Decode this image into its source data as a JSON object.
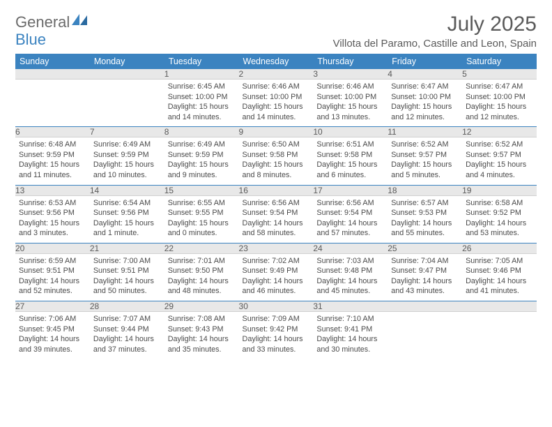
{
  "brand": {
    "word1": "General",
    "word2": "Blue"
  },
  "title": "July 2025",
  "location": "Villota del Paramo, Castille and Leon, Spain",
  "headerColor": "#3b83c0",
  "dayNames": [
    "Sunday",
    "Monday",
    "Tuesday",
    "Wednesday",
    "Thursday",
    "Friday",
    "Saturday"
  ],
  "weeks": [
    [
      null,
      null,
      {
        "n": "1",
        "sr": "6:45 AM",
        "ss": "10:00 PM",
        "dl": "15 hours and 14 minutes."
      },
      {
        "n": "2",
        "sr": "6:46 AM",
        "ss": "10:00 PM",
        "dl": "15 hours and 14 minutes."
      },
      {
        "n": "3",
        "sr": "6:46 AM",
        "ss": "10:00 PM",
        "dl": "15 hours and 13 minutes."
      },
      {
        "n": "4",
        "sr": "6:47 AM",
        "ss": "10:00 PM",
        "dl": "15 hours and 12 minutes."
      },
      {
        "n": "5",
        "sr": "6:47 AM",
        "ss": "10:00 PM",
        "dl": "15 hours and 12 minutes."
      }
    ],
    [
      {
        "n": "6",
        "sr": "6:48 AM",
        "ss": "9:59 PM",
        "dl": "15 hours and 11 minutes."
      },
      {
        "n": "7",
        "sr": "6:49 AM",
        "ss": "9:59 PM",
        "dl": "15 hours and 10 minutes."
      },
      {
        "n": "8",
        "sr": "6:49 AM",
        "ss": "9:59 PM",
        "dl": "15 hours and 9 minutes."
      },
      {
        "n": "9",
        "sr": "6:50 AM",
        "ss": "9:58 PM",
        "dl": "15 hours and 8 minutes."
      },
      {
        "n": "10",
        "sr": "6:51 AM",
        "ss": "9:58 PM",
        "dl": "15 hours and 6 minutes."
      },
      {
        "n": "11",
        "sr": "6:52 AM",
        "ss": "9:57 PM",
        "dl": "15 hours and 5 minutes."
      },
      {
        "n": "12",
        "sr": "6:52 AM",
        "ss": "9:57 PM",
        "dl": "15 hours and 4 minutes."
      }
    ],
    [
      {
        "n": "13",
        "sr": "6:53 AM",
        "ss": "9:56 PM",
        "dl": "15 hours and 3 minutes."
      },
      {
        "n": "14",
        "sr": "6:54 AM",
        "ss": "9:56 PM",
        "dl": "15 hours and 1 minute."
      },
      {
        "n": "15",
        "sr": "6:55 AM",
        "ss": "9:55 PM",
        "dl": "15 hours and 0 minutes."
      },
      {
        "n": "16",
        "sr": "6:56 AM",
        "ss": "9:54 PM",
        "dl": "14 hours and 58 minutes."
      },
      {
        "n": "17",
        "sr": "6:56 AM",
        "ss": "9:54 PM",
        "dl": "14 hours and 57 minutes."
      },
      {
        "n": "18",
        "sr": "6:57 AM",
        "ss": "9:53 PM",
        "dl": "14 hours and 55 minutes."
      },
      {
        "n": "19",
        "sr": "6:58 AM",
        "ss": "9:52 PM",
        "dl": "14 hours and 53 minutes."
      }
    ],
    [
      {
        "n": "20",
        "sr": "6:59 AM",
        "ss": "9:51 PM",
        "dl": "14 hours and 52 minutes."
      },
      {
        "n": "21",
        "sr": "7:00 AM",
        "ss": "9:51 PM",
        "dl": "14 hours and 50 minutes."
      },
      {
        "n": "22",
        "sr": "7:01 AM",
        "ss": "9:50 PM",
        "dl": "14 hours and 48 minutes."
      },
      {
        "n": "23",
        "sr": "7:02 AM",
        "ss": "9:49 PM",
        "dl": "14 hours and 46 minutes."
      },
      {
        "n": "24",
        "sr": "7:03 AM",
        "ss": "9:48 PM",
        "dl": "14 hours and 45 minutes."
      },
      {
        "n": "25",
        "sr": "7:04 AM",
        "ss": "9:47 PM",
        "dl": "14 hours and 43 minutes."
      },
      {
        "n": "26",
        "sr": "7:05 AM",
        "ss": "9:46 PM",
        "dl": "14 hours and 41 minutes."
      }
    ],
    [
      {
        "n": "27",
        "sr": "7:06 AM",
        "ss": "9:45 PM",
        "dl": "14 hours and 39 minutes."
      },
      {
        "n": "28",
        "sr": "7:07 AM",
        "ss": "9:44 PM",
        "dl": "14 hours and 37 minutes."
      },
      {
        "n": "29",
        "sr": "7:08 AM",
        "ss": "9:43 PM",
        "dl": "14 hours and 35 minutes."
      },
      {
        "n": "30",
        "sr": "7:09 AM",
        "ss": "9:42 PM",
        "dl": "14 hours and 33 minutes."
      },
      {
        "n": "31",
        "sr": "7:10 AM",
        "ss": "9:41 PM",
        "dl": "14 hours and 30 minutes."
      },
      null,
      null
    ]
  ],
  "labels": {
    "sunrise": "Sunrise:",
    "sunset": "Sunset:",
    "daylight": "Daylight:"
  }
}
